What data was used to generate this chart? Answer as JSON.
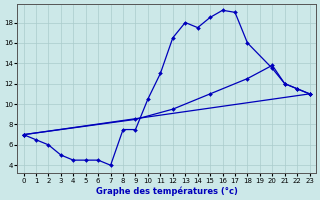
{
  "xlabel": "Graphe des températures (°c)",
  "background_color": "#cce8e8",
  "line_color": "#0000bb",
  "marker": "D",
  "markersize": 2.0,
  "linewidth": 0.9,
  "xlim": [
    -0.5,
    23.5
  ],
  "ylim": [
    3.2,
    19.8
  ],
  "xticks": [
    0,
    1,
    2,
    3,
    4,
    5,
    6,
    7,
    8,
    9,
    10,
    11,
    12,
    13,
    14,
    15,
    16,
    17,
    18,
    19,
    20,
    21,
    22,
    23
  ],
  "yticks": [
    4,
    6,
    8,
    10,
    12,
    14,
    16,
    18
  ],
  "grid_color": "#aacccc",
  "series": [
    {
      "x": [
        0,
        1,
        2,
        3,
        4,
        5,
        6,
        7,
        8,
        9,
        10,
        11,
        12,
        13,
        14,
        15,
        16,
        17,
        18,
        20,
        21,
        22,
        23
      ],
      "y": [
        7.0,
        6.5,
        6.0,
        5.0,
        4.5,
        4.5,
        4.5,
        4.0,
        7.5,
        7.5,
        10.5,
        13.0,
        16.5,
        18.0,
        17.5,
        18.5,
        19.2,
        19.0,
        16.0,
        13.5,
        12.0,
        11.5,
        11.0
      ]
    },
    {
      "x": [
        0,
        9,
        12,
        15,
        18,
        20,
        21,
        22,
        23
      ],
      "y": [
        7.0,
        8.5,
        9.5,
        11.0,
        12.5,
        13.8,
        12.0,
        11.5,
        11.0
      ]
    },
    {
      "x": [
        0,
        23
      ],
      "y": [
        7.0,
        11.0
      ]
    }
  ]
}
